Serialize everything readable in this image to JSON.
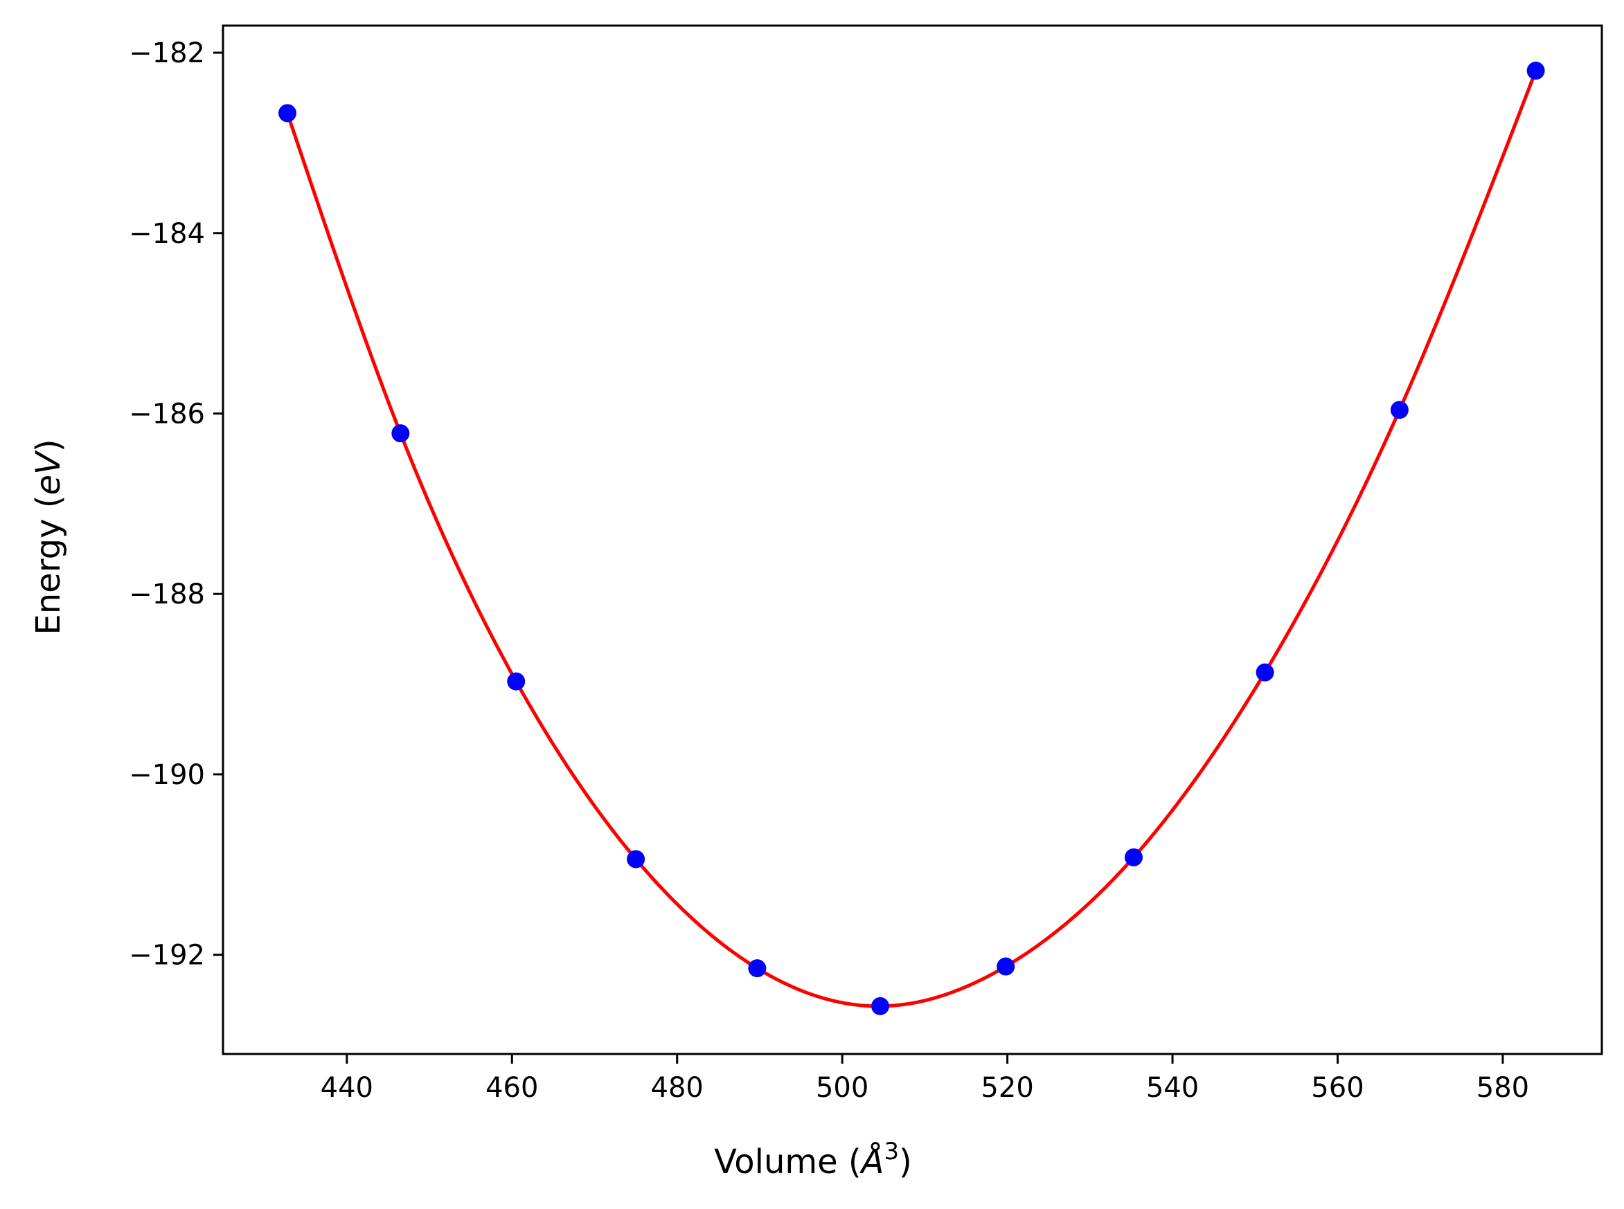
{
  "chart_data": {
    "type": "scatter",
    "title": "",
    "xlabel": {
      "base": "Volume (",
      "italic": "Å",
      "sup": "3",
      "tail": ")"
    },
    "ylabel": {
      "base": "Energy (",
      "italic": "eV",
      "tail": ")"
    },
    "xlim": [
      425,
      592
    ],
    "ylim": [
      -193.1,
      -181.7
    ],
    "xticks": [
      440,
      460,
      480,
      500,
      520,
      540,
      560,
      580
    ],
    "yticks": [
      -182,
      -184,
      -186,
      -188,
      -190,
      -192
    ],
    "grid": false,
    "legend": "none",
    "series": [
      {
        "kind": "points",
        "color": "#0000ff",
        "x": [
          432.8,
          446.5,
          460.5,
          475.0,
          489.7,
          504.6,
          519.8,
          535.3,
          551.2,
          567.5,
          584.0
        ],
        "y": [
          -182.67,
          -186.22,
          -188.97,
          -190.94,
          -192.15,
          -192.57,
          -192.13,
          -190.92,
          -188.87,
          -185.96,
          -182.2
        ]
      },
      {
        "kind": "fit-curve",
        "color": "#ff0000",
        "fit_of_points": true
      }
    ]
  }
}
